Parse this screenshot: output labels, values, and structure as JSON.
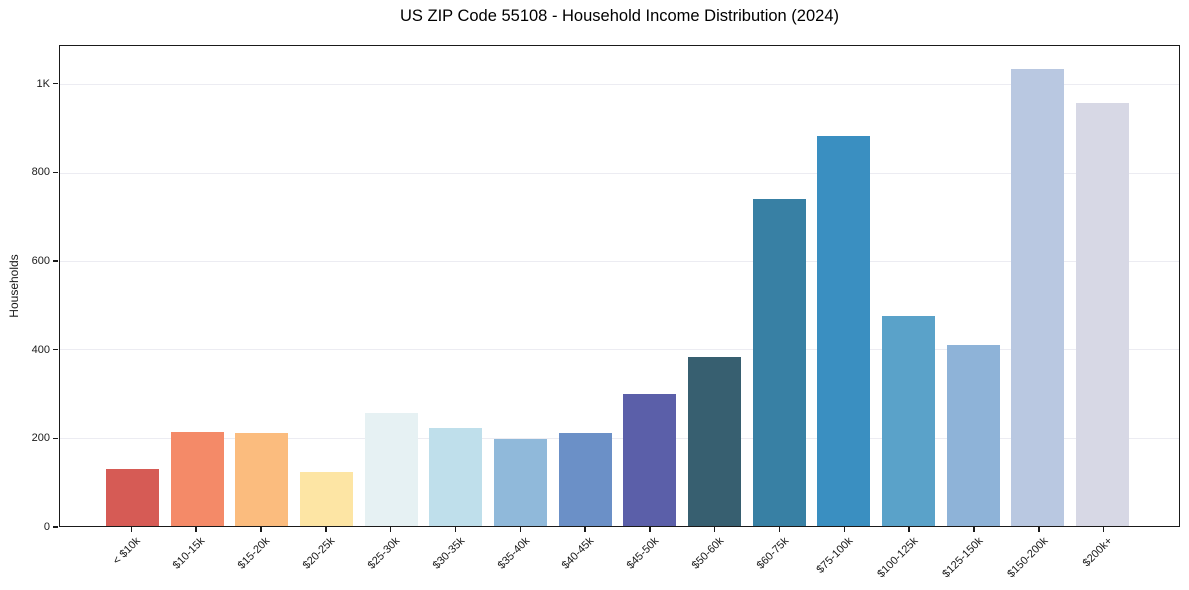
{
  "chart_data": {
    "type": "bar",
    "title": "US ZIP Code 55108 - Household Income Distribution (2024)",
    "xlabel": "",
    "ylabel": "Households",
    "categories": [
      "< $10k",
      "$10-15k",
      "$15-20k",
      "$20-25k",
      "$25-30k",
      "$30-35k",
      "$35-40k",
      "$40-45k",
      "$45-50k",
      "$50-60k",
      "$60-75k",
      "$75-100k",
      "$100-125k",
      "$125-150k",
      "$150-200k",
      "$200k+"
    ],
    "values": [
      130,
      212,
      210,
      122,
      257,
      222,
      197,
      210,
      300,
      382,
      740,
      884,
      476,
      410,
      1035,
      957
    ],
    "bar_colors": [
      "#d65b55",
      "#f48a68",
      "#fbbc7e",
      "#fde5a4",
      "#e6f1f3",
      "#bfdfeb",
      "#90b9da",
      "#6b90c7",
      "#5b5fa9",
      "#375f70",
      "#3880a4",
      "#3a8fc1",
      "#5aa2c9",
      "#8eb3d8",
      "#b9c8e1",
      "#d7d8e5"
    ],
    "ylim": [
      0,
      1087
    ],
    "yticks": [
      {
        "value": 0,
        "label": "0"
      },
      {
        "value": 200,
        "label": "200"
      },
      {
        "value": 400,
        "label": "400"
      },
      {
        "value": 600,
        "label": "600"
      },
      {
        "value": 800,
        "label": "800"
      },
      {
        "value": 1000,
        "label": "1K"
      }
    ],
    "grid": "horizontal",
    "legend": "none",
    "colors": {
      "background": "#ffffff",
      "axis": "#1a1a1a",
      "gridline": "#ececf2",
      "text": "#1a1a1a"
    }
  }
}
